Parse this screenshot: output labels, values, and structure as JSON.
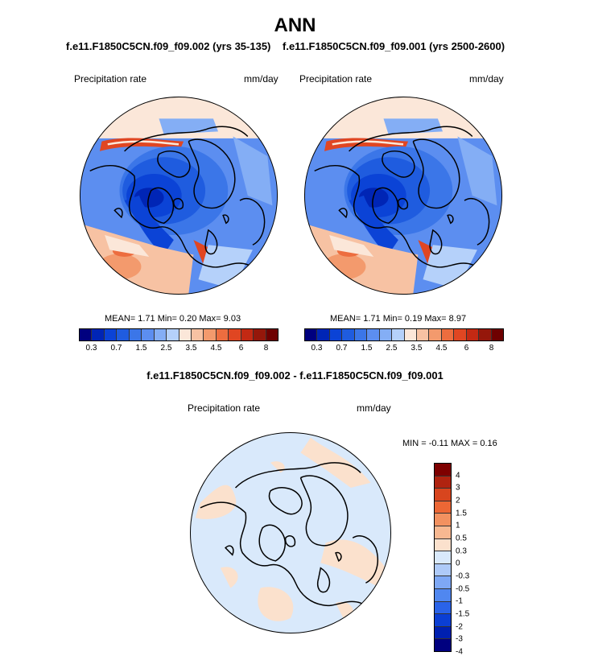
{
  "page_title": "ANN",
  "colors": {
    "abs_scale": [
      "#00007f",
      "#0025b5",
      "#0b43d6",
      "#1f5cdf",
      "#3b76e8",
      "#5c8ef0",
      "#84aef5",
      "#b5d1fa",
      "#fbe7d9",
      "#f7c2a3",
      "#f39a6d",
      "#ed6d3f",
      "#e04622",
      "#c32913",
      "#95170a",
      "#6e0000"
    ],
    "diff_scale": [
      "#00007f",
      "#0020b0",
      "#0b3fd4",
      "#2a63e8",
      "#5087f0",
      "#7ea8f5",
      "#aecaf8",
      "#d9e9fb",
      "#fbe1cd",
      "#f7b891",
      "#f29160",
      "#ec6735",
      "#d8451e",
      "#b02310",
      "#7e0000"
    ]
  },
  "chart_data": [
    {
      "type": "heatmap",
      "projection": "north-polar-stereographic",
      "case_title": "f.e11.F1850C5CN.f09_f09.002 (yrs 35-135)",
      "variable_label": "Precipitation rate",
      "units": "mm/day",
      "stats": {
        "mean": "1.71",
        "min": "0.20",
        "max": "9.03"
      },
      "stats_text": "MEAN=   1.71  Min=   0.20  Max=   9.03",
      "contour_levels": [
        0.2,
        0.3,
        0.5,
        0.7,
        1,
        1.5,
        2,
        2.5,
        3,
        3.5,
        4,
        4.5,
        5,
        6,
        7,
        8
      ],
      "colorbar_tick_labels": [
        "0.3",
        "0.7",
        "1.5",
        "2.5",
        "3.5",
        "4.5",
        "6",
        "8"
      ]
    },
    {
      "type": "heatmap",
      "projection": "north-polar-stereographic",
      "case_title": "f.e11.F1850C5CN.f09_f09.001 (yrs 2500-2600)",
      "variable_label": "Precipitation rate",
      "units": "mm/day",
      "stats": {
        "mean": "1.71",
        "min": "0.19",
        "max": "8.97"
      },
      "stats_text": "MEAN=   1.71  Min=   0.19  Max=   8.97",
      "contour_levels": [
        0.2,
        0.3,
        0.5,
        0.7,
        1,
        1.5,
        2,
        2.5,
        3,
        3.5,
        4,
        4.5,
        5,
        6,
        7,
        8
      ],
      "colorbar_tick_labels": [
        "0.3",
        "0.7",
        "1.5",
        "2.5",
        "3.5",
        "4.5",
        "6",
        "8"
      ]
    },
    {
      "type": "heatmap",
      "projection": "north-polar-stereographic",
      "case_title": "f.e11.F1850C5CN.f09_f09.002 - f.e11.F1850C5CN.f09_f09.001",
      "variable_label": "Precipitation rate",
      "units": "mm/day",
      "stats": {
        "min": "-0.11",
        "max": "0.16"
      },
      "stats_text": "MIN =  -0.11 MAX =   0.16",
      "contour_levels": [
        -4,
        -3,
        -2,
        -1.5,
        -1,
        -0.5,
        -0.3,
        0,
        0.3,
        0.5,
        1,
        1.5,
        2,
        3,
        4
      ],
      "colorbar_tick_labels": [
        "4",
        "3",
        "2",
        "1.5",
        "1",
        "0.5",
        "0.3",
        "0",
        "-0.3",
        "-0.5",
        "-1",
        "-1.5",
        "-2",
        "-3",
        "-4"
      ]
    }
  ]
}
